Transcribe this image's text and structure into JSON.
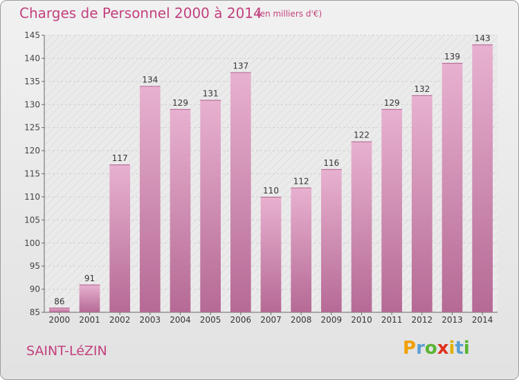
{
  "title": "Charges de Personnel 2000 à 2014",
  "unit": "(en milliers d'€)",
  "commune": "SAINT-LéZIN",
  "logo": {
    "letters": [
      "P",
      "r",
      "o",
      "x",
      "i",
      "t",
      "i"
    ],
    "colors": [
      "#f0a000",
      "#5a9fd4",
      "#58b431",
      "#e0301e",
      "#e0b000",
      "#5a9fd4",
      "#58b431"
    ]
  },
  "chart_data": {
    "type": "bar",
    "categories": [
      "2000",
      "2001",
      "2002",
      "2003",
      "2004",
      "2005",
      "2006",
      "2007",
      "2008",
      "2009",
      "2010",
      "2011",
      "2012",
      "2013",
      "2014"
    ],
    "values": [
      86,
      91,
      117,
      134,
      129,
      131,
      137,
      110,
      112,
      116,
      122,
      129,
      132,
      139,
      143
    ],
    "ylim": [
      85,
      145
    ],
    "yticks": [
      85,
      90,
      95,
      100,
      105,
      110,
      115,
      120,
      125,
      130,
      135,
      140,
      145
    ],
    "grid": true,
    "bar_color": "#d58ab3"
  }
}
